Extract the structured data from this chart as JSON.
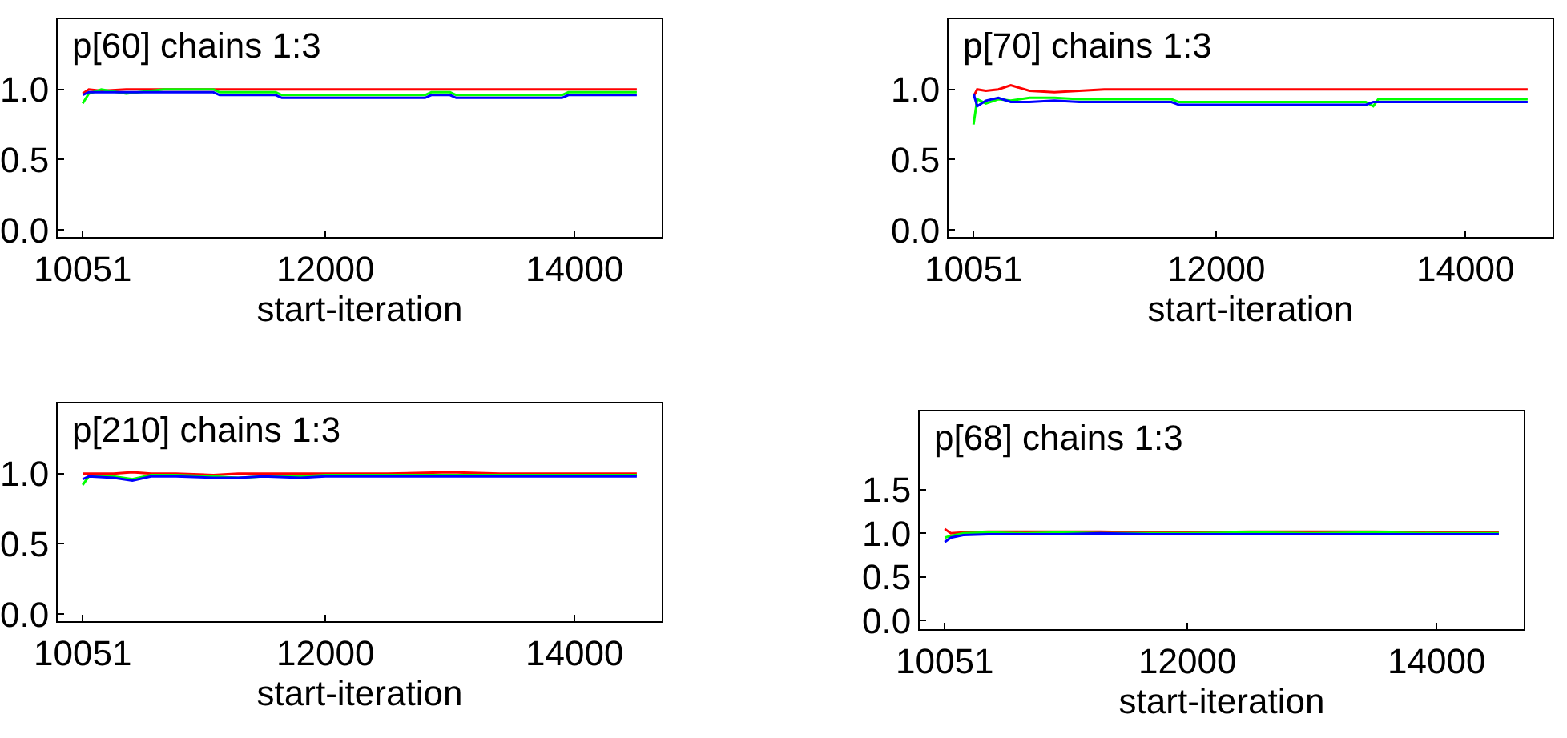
{
  "chart_data": [
    {
      "type": "line",
      "title": "p[60] chains 1:3",
      "xlabel": "start-iteration",
      "xlim": [
        9850,
        14700
      ],
      "xticks": [
        10051,
        12000,
        14000
      ],
      "ylim": [
        -0.05,
        1.5
      ],
      "yticks": [
        {
          "value": 0,
          "label": "0.0"
        },
        {
          "value": 0.5,
          "label": "0.5"
        },
        {
          "value": 1,
          "label": "1.0"
        }
      ],
      "grid": false,
      "marker": "none",
      "line_style": "solid",
      "x": [
        10051,
        10100,
        10200,
        10400,
        10700,
        11100,
        11150,
        11600,
        11650,
        12800,
        12850,
        13000,
        13050,
        13900,
        13950,
        14500
      ],
      "series": [
        {
          "color": "#ff0000",
          "values": [
            0.97,
            1.0,
            0.99,
            1.0,
            1.0,
            1.0,
            1.0,
            1.0,
            1.0,
            1.0,
            1.0,
            1.0,
            1.0,
            1.0,
            1.0,
            1.0
          ]
        },
        {
          "color": "#00ff00",
          "values": [
            0.9,
            0.97,
            1.0,
            0.97,
            1.0,
            1.0,
            0.98,
            0.98,
            0.96,
            0.96,
            0.98,
            0.98,
            0.96,
            0.96,
            0.98,
            0.98
          ]
        },
        {
          "color": "#0000ff",
          "values": [
            0.96,
            0.98,
            0.98,
            0.98,
            0.98,
            0.98,
            0.96,
            0.96,
            0.94,
            0.94,
            0.96,
            0.96,
            0.94,
            0.94,
            0.96,
            0.96
          ]
        }
      ]
    },
    {
      "type": "line",
      "title": "p[70] chains 1:3",
      "xlabel": "start-iteration",
      "xlim": [
        9850,
        14700
      ],
      "xticks": [
        10051,
        12000,
        14000
      ],
      "ylim": [
        -0.05,
        1.5
      ],
      "yticks": [
        {
          "value": 0,
          "label": "0.0"
        },
        {
          "value": 0.5,
          "label": "0.5"
        },
        {
          "value": 1,
          "label": "1.0"
        }
      ],
      "grid": false,
      "marker": "none",
      "line_style": "solid",
      "x": [
        10051,
        10080,
        10150,
        10250,
        10350,
        10500,
        10700,
        10900,
        11100,
        11640,
        11700,
        13200,
        13260,
        13300,
        14500
      ],
      "series": [
        {
          "color": "#ff0000",
          "values": [
            0.95,
            1.0,
            0.99,
            1.0,
            1.03,
            0.99,
            0.98,
            0.99,
            1.0,
            1.0,
            1.0,
            1.0,
            1.0,
            1.0,
            1.0
          ]
        },
        {
          "color": "#00ff00",
          "values": [
            0.75,
            0.93,
            0.9,
            0.93,
            0.92,
            0.94,
            0.94,
            0.93,
            0.93,
            0.93,
            0.91,
            0.91,
            0.88,
            0.93,
            0.93
          ]
        },
        {
          "color": "#0000ff",
          "values": [
            0.97,
            0.88,
            0.92,
            0.94,
            0.91,
            0.91,
            0.92,
            0.91,
            0.91,
            0.91,
            0.89,
            0.89,
            0.91,
            0.91,
            0.91
          ]
        }
      ]
    },
    {
      "type": "line",
      "title": "p[210] chains 1:3",
      "xlabel": "start-iteration",
      "xlim": [
        9850,
        14700
      ],
      "xticks": [
        10051,
        12000,
        14000
      ],
      "ylim": [
        -0.05,
        1.5
      ],
      "yticks": [
        {
          "value": 0,
          "label": "0.0"
        },
        {
          "value": 0.5,
          "label": "0.5"
        },
        {
          "value": 1,
          "label": "1.0"
        }
      ],
      "grid": false,
      "marker": "none",
      "line_style": "solid",
      "x": [
        10051,
        10100,
        10300,
        10450,
        10600,
        10800,
        11100,
        11300,
        11500,
        11800,
        12000,
        12500,
        13000,
        13400,
        14500
      ],
      "series": [
        {
          "color": "#ff0000",
          "values": [
            1.0,
            1.0,
            1.0,
            1.01,
            1.0,
            1.0,
            0.99,
            1.0,
            1.0,
            1.0,
            1.0,
            1.0,
            1.01,
            1.0,
            1.0
          ]
        },
        {
          "color": "#00ff00",
          "values": [
            0.92,
            0.98,
            0.98,
            0.96,
            0.99,
            0.99,
            0.98,
            0.97,
            0.98,
            0.98,
            0.99,
            0.99,
            0.99,
            0.99,
            0.99
          ]
        },
        {
          "color": "#0000ff",
          "values": [
            0.96,
            0.98,
            0.97,
            0.95,
            0.98,
            0.98,
            0.97,
            0.97,
            0.98,
            0.97,
            0.98,
            0.98,
            0.98,
            0.98,
            0.98
          ]
        }
      ]
    },
    {
      "type": "line",
      "title": "p[68] chains 1:3",
      "xlabel": "start-iteration",
      "xlim": [
        9850,
        14700
      ],
      "xticks": [
        10051,
        12000,
        14000
      ],
      "ylim": [
        -0.1,
        2.4
      ],
      "yticks": [
        {
          "value": 0,
          "label": "0.0"
        },
        {
          "value": 0.5,
          "label": "0.5"
        },
        {
          "value": 1,
          "label": "1.0"
        },
        {
          "value": 1.5,
          "label": "1.5"
        }
      ],
      "grid": false,
      "marker": "none",
      "line_style": "solid",
      "x": [
        10051,
        10100,
        10200,
        10400,
        10700,
        11000,
        11300,
        11700,
        12000,
        12500,
        13000,
        13500,
        14000,
        14500
      ],
      "series": [
        {
          "color": "#ff0000",
          "values": [
            1.05,
            1.0,
            1.01,
            1.02,
            1.02,
            1.02,
            1.02,
            1.01,
            1.01,
            1.02,
            1.02,
            1.02,
            1.01,
            1.01
          ]
        },
        {
          "color": "#00ff00",
          "values": [
            0.95,
            0.97,
            1.0,
            1.01,
            1.0,
            1.01,
            1.0,
            1.0,
            1.0,
            1.01,
            1.0,
            1.01,
            1.0,
            1.0
          ]
        },
        {
          "color": "#0000ff",
          "values": [
            0.9,
            0.95,
            0.98,
            0.99,
            0.99,
            0.99,
            1.0,
            0.99,
            0.99,
            0.99,
            0.99,
            0.99,
            0.99,
            0.99
          ]
        }
      ]
    }
  ]
}
